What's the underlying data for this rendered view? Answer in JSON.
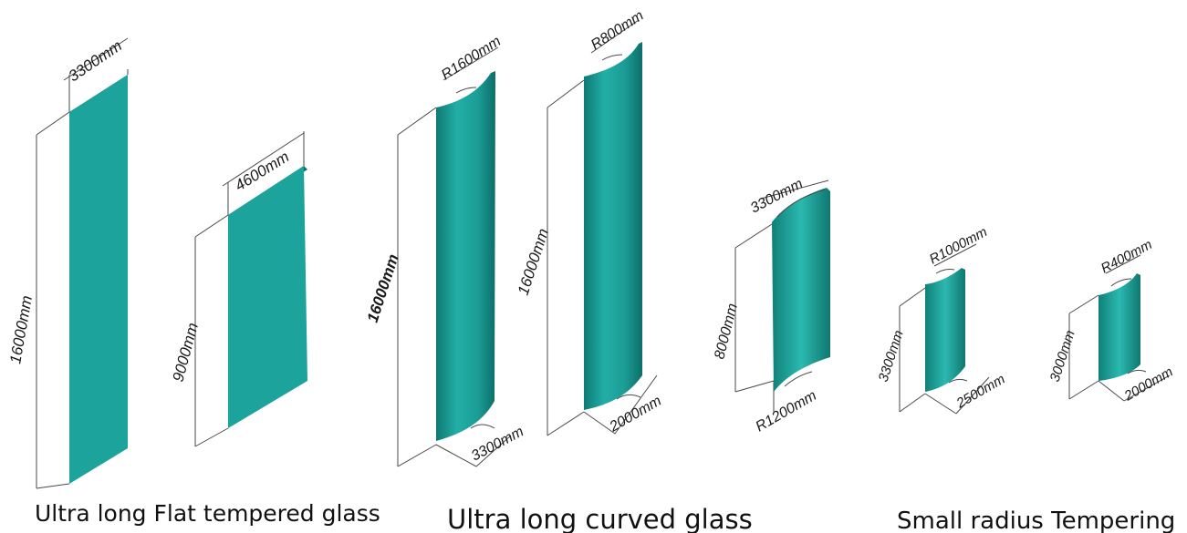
{
  "colors": {
    "glass_face": "#1ba39c",
    "glass_dark": "#0c6f69",
    "glass_light": "#4fd0c8",
    "dimension_line": "#4a4a4a",
    "text": "#111111"
  },
  "panels": [
    {
      "name": "flat-panel-1",
      "height_label": "16000mm",
      "width_label": "3300mm"
    },
    {
      "name": "flat-panel-2",
      "height_label": "9000mm",
      "width_label": "4600mm"
    },
    {
      "name": "curved-panel-1",
      "height_label": "16000mm",
      "radius_label": "R1600mm",
      "chord_label": "3300mm"
    },
    {
      "name": "curved-panel-2",
      "height_label": "16000mm",
      "radius_label": "R800mm",
      "chord_label": "2000mm"
    },
    {
      "name": "curved-panel-3",
      "height_label": "8000mm",
      "top_label": "3300mm",
      "radius_label": "R1200mm"
    },
    {
      "name": "small-panel-1",
      "height_label": "3300mm",
      "radius_label": "R1000mm",
      "chord_label": "2500mm"
    },
    {
      "name": "small-panel-2",
      "height_label": "3000mm",
      "radius_label": "R400mm",
      "chord_label": "2000mm"
    }
  ],
  "captions": {
    "flat": "Ultra long Flat tempered glass",
    "curved": "Ultra long curved glass",
    "small_radius": "Small radius Tempering"
  }
}
